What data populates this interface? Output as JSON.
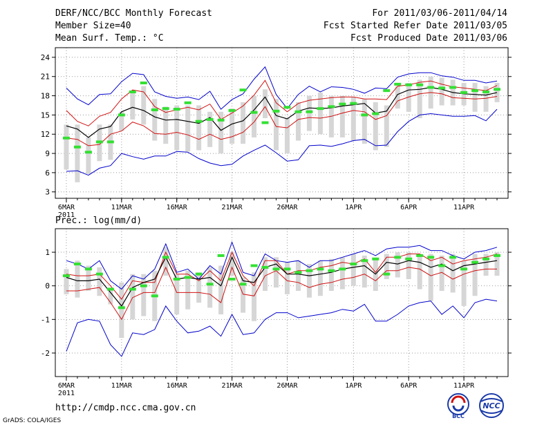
{
  "header": {
    "title": "DERF/NCC/BCC Monthly Forecast",
    "member_size": "Member Size=40",
    "variable": "Mean Surf. Temp.: °C",
    "period": "For 2011/03/06-2011/04/14",
    "refer_date": "Fcst Started Refer Date 2011/03/05",
    "produced_date": "Fcst Produced Date 2011/03/06"
  },
  "footer": {
    "url": "http://cmdp.ncc.cma.gov.cn",
    "credit": "GrADS: COLA/IGES",
    "logo_bcc_text": "BCC",
    "logo_ncc_text": "NCC"
  },
  "colors": {
    "mean": "#000000",
    "spread": "#d01010",
    "extremes": "#0000cc",
    "box": "#d6d6d6",
    "median": "#33e033"
  },
  "chart_data": [
    {
      "type": "line",
      "title": "Mean Surf. Temp.: °C",
      "xlabel": "",
      "ylabel": "°C",
      "ylim": [
        2,
        25.5
      ],
      "yticks": [
        3,
        6,
        9,
        12,
        15,
        18,
        21,
        24
      ],
      "xtick_labels": [
        "6MAR",
        "11MAR",
        "16MAR",
        "21MAR",
        "26MAR",
        "1APR",
        "6APR",
        "11APR"
      ],
      "xtick_days": [
        1,
        6,
        11,
        16,
        21,
        27,
        32,
        37
      ],
      "year_label": "2011",
      "grid": true,
      "days": [
        1,
        2,
        3,
        4,
        5,
        6,
        7,
        8,
        9,
        10,
        11,
        12,
        13,
        14,
        15,
        16,
        17,
        18,
        19,
        20,
        21,
        22,
        23,
        24,
        25,
        26,
        27,
        28,
        29,
        30,
        31,
        32,
        33,
        34,
        35,
        36,
        37,
        38,
        39,
        40
      ],
      "series": [
        {
          "name": "max",
          "values": [
            19.2,
            17.5,
            16.6,
            18.2,
            18.3,
            20.2,
            21.5,
            21.3,
            18.6,
            17.9,
            17.6,
            17.8,
            17.4,
            18.7,
            15.9,
            17.4,
            18.3,
            20.6,
            22.5,
            18.2,
            16.0,
            18.2,
            19.5,
            18.6,
            19.4,
            19.3,
            19.0,
            18.4,
            19.2,
            19.1,
            20.9,
            21.4,
            21.6,
            21.6,
            21.1,
            20.9,
            20.4,
            20.4,
            20.0,
            20.3
          ]
        },
        {
          "name": "upper",
          "values": [
            15.7,
            14.0,
            13.3,
            14.8,
            15.4,
            17.5,
            18.9,
            18.6,
            16.3,
            15.4,
            15.8,
            16.2,
            15.8,
            16.7,
            14.3,
            15.3,
            16.4,
            18.1,
            20.4,
            16.9,
            15.5,
            16.8,
            17.3,
            17.5,
            17.7,
            17.8,
            17.8,
            17.5,
            17.5,
            17.4,
            19.5,
            19.7,
            20.1,
            20.3,
            19.8,
            19.4,
            19.2,
            19.0,
            18.8,
            19.6
          ]
        },
        {
          "name": "mean",
          "values": [
            13.3,
            12.8,
            11.5,
            12.8,
            13.2,
            15.5,
            16.2,
            15.7,
            14.7,
            14.2,
            14.3,
            14.0,
            13.7,
            14.6,
            12.6,
            13.6,
            14.1,
            15.8,
            17.8,
            14.9,
            14.4,
            15.6,
            16.1,
            16.0,
            16.1,
            16.4,
            16.6,
            16.8,
            15.3,
            15.6,
            18.2,
            18.9,
            19.0,
            19.3,
            19.0,
            18.5,
            18.3,
            18.2,
            18.1,
            18.5
          ]
        },
        {
          "name": "lower",
          "values": [
            11.4,
            11.2,
            10.2,
            10.4,
            12.0,
            12.5,
            13.9,
            13.3,
            12.1,
            12.0,
            12.3,
            11.9,
            11.2,
            12.0,
            11.2,
            11.6,
            12.3,
            13.9,
            16.3,
            13.2,
            13.0,
            14.3,
            14.6,
            14.5,
            14.8,
            15.3,
            15.7,
            15.5,
            14.3,
            14.9,
            17.2,
            17.8,
            18.3,
            18.5,
            18.3,
            17.7,
            17.6,
            17.5,
            17.6,
            17.9
          ]
        },
        {
          "name": "min",
          "values": [
            6.2,
            6.3,
            5.6,
            6.7,
            7.1,
            9.0,
            8.5,
            8.1,
            8.6,
            8.6,
            9.3,
            9.2,
            8.2,
            7.5,
            7.1,
            7.3,
            8.6,
            9.5,
            10.3,
            9.1,
            7.8,
            8.0,
            10.2,
            10.3,
            10.1,
            10.5,
            11.0,
            11.2,
            10.2,
            10.3,
            12.4,
            14.0,
            15.0,
            15.2,
            15.0,
            14.8,
            14.8,
            14.9,
            14.1,
            15.9
          ]
        },
        {
          "name": "box_top",
          "values": [
            13.5,
            13.5,
            11.5,
            13.5,
            13.5,
            15.5,
            18.8,
            19.5,
            17.5,
            16.3,
            16.5,
            16.5,
            16.5,
            15.5,
            15.5,
            16.0,
            17.0,
            18.0,
            19.0,
            17.5,
            14.5,
            17.0,
            18.0,
            18.5,
            18.0,
            18.0,
            17.8,
            17.5,
            17.0,
            16.5,
            19.5,
            20.0,
            20.5,
            21.0,
            20.8,
            20.5,
            20.0,
            20.0,
            19.5,
            20.0
          ]
        },
        {
          "name": "box_bottom",
          "values": [
            6.5,
            4.5,
            5.8,
            7.8,
            8.0,
            12.5,
            14.3,
            13.5,
            11.0,
            10.5,
            9.5,
            9.3,
            9.5,
            10.0,
            9.0,
            10.5,
            10.5,
            11.5,
            14.5,
            9.5,
            9.0,
            11.0,
            12.5,
            12.0,
            11.5,
            11.5,
            11.0,
            10.5,
            9.5,
            10.0,
            16.0,
            15.5,
            14.5,
            16.0,
            16.5,
            16.5,
            16.5,
            15.5,
            15.5,
            17.0
          ]
        },
        {
          "name": "median",
          "values": [
            11.4,
            10.0,
            9.2,
            10.8,
            10.8,
            15.0,
            18.6,
            20.0,
            15.8,
            16.0,
            15.9,
            16.9,
            14.0,
            14.3,
            14.2,
            15.7,
            18.9,
            15.4,
            13.8,
            15.6,
            16.2,
            15.5,
            15.5,
            16.0,
            16.3,
            16.7,
            16.8,
            15.0,
            15.2,
            18.8,
            19.8,
            19.7,
            19.7,
            19.3,
            19.2,
            19.3,
            18.5,
            18.8,
            18.6,
            19.0
          ]
        }
      ]
    },
    {
      "type": "line",
      "title": "Prec.: log(mm/d)",
      "xlabel": "",
      "ylabel": "log(mm/d)",
      "ylim": [
        -2.7,
        1.7
      ],
      "yticks": [
        -2,
        -1,
        0,
        1
      ],
      "xtick_labels": [
        "6MAR",
        "11MAR",
        "16MAR",
        "21MAR",
        "26MAR",
        "1APR",
        "6APR",
        "11APR"
      ],
      "xtick_days": [
        1,
        6,
        11,
        16,
        21,
        27,
        32,
        37
      ],
      "year_label": "2011",
      "grid": true,
      "days": [
        1,
        2,
        3,
        4,
        5,
        6,
        7,
        8,
        9,
        10,
        11,
        12,
        13,
        14,
        15,
        16,
        17,
        18,
        19,
        20,
        21,
        22,
        23,
        24,
        25,
        26,
        27,
        28,
        29,
        30,
        31,
        32,
        33,
        34,
        35,
        36,
        37,
        38,
        39,
        40
      ],
      "series": [
        {
          "name": "max",
          "values": [
            0.75,
            0.65,
            0.5,
            0.75,
            0.15,
            -0.1,
            0.3,
            0.2,
            0.5,
            1.25,
            0.4,
            0.5,
            0.2,
            0.6,
            0.35,
            1.3,
            0.4,
            0.3,
            0.95,
            0.75,
            0.7,
            0.75,
            0.55,
            0.75,
            0.75,
            0.85,
            0.95,
            1.05,
            0.9,
            1.1,
            1.15,
            1.15,
            1.2,
            1.05,
            1.05,
            0.9,
            0.8,
            1.0,
            1.05,
            1.15
          ]
        },
        {
          "name": "upper",
          "values": [
            0.35,
            0.3,
            0.3,
            0.35,
            0.0,
            -0.4,
            0.15,
            0.1,
            0.1,
            1.0,
            0.35,
            0.35,
            0.15,
            0.45,
            0.15,
            1.0,
            0.3,
            0.0,
            0.75,
            0.75,
            0.35,
            0.45,
            0.45,
            0.55,
            0.6,
            0.7,
            0.65,
            0.8,
            0.4,
            0.85,
            0.85,
            0.95,
            0.95,
            0.75,
            0.85,
            0.65,
            0.75,
            0.8,
            0.85,
            0.95
          ]
        },
        {
          "name": "mean",
          "values": [
            0.25,
            0.15,
            0.15,
            0.2,
            -0.2,
            -0.6,
            -0.05,
            0.1,
            0.2,
            0.85,
            0.2,
            0.25,
            0.2,
            0.25,
            0.0,
            0.85,
            0.15,
            0.1,
            0.55,
            0.65,
            0.35,
            0.35,
            0.3,
            0.35,
            0.4,
            0.5,
            0.55,
            0.6,
            0.35,
            0.7,
            0.65,
            0.75,
            0.7,
            0.55,
            0.65,
            0.45,
            0.6,
            0.65,
            0.7,
            0.75
          ]
        },
        {
          "name": "lower",
          "values": [
            -0.15,
            -0.15,
            -0.1,
            -0.05,
            -0.5,
            -1.0,
            -0.35,
            -0.2,
            -0.2,
            0.55,
            -0.2,
            -0.2,
            -0.2,
            -0.25,
            -0.5,
            0.55,
            -0.25,
            -0.3,
            0.3,
            0.45,
            0.15,
            0.1,
            -0.05,
            0.05,
            0.1,
            0.2,
            0.25,
            0.35,
            0.15,
            0.45,
            0.45,
            0.55,
            0.5,
            0.3,
            0.4,
            0.2,
            0.35,
            0.45,
            0.5,
            0.5
          ]
        },
        {
          "name": "min",
          "values": [
            -1.95,
            -1.1,
            -1.0,
            -1.05,
            -1.75,
            -2.1,
            -1.4,
            -1.45,
            -1.3,
            -0.6,
            -1.05,
            -1.4,
            -1.35,
            -1.2,
            -1.5,
            -0.85,
            -1.45,
            -1.4,
            -1.0,
            -0.8,
            -0.8,
            -0.95,
            -0.9,
            -0.85,
            -0.8,
            -0.7,
            -0.75,
            -0.55,
            -1.05,
            -1.05,
            -0.85,
            -0.6,
            -0.5,
            -0.45,
            -0.85,
            -0.6,
            -0.95,
            -0.5,
            -0.4,
            -0.45
          ]
        },
        {
          "name": "box_top",
          "values": [
            0.5,
            0.75,
            0.6,
            0.55,
            -0.05,
            0.1,
            0.35,
            0.35,
            0.45,
            1.15,
            0.35,
            0.45,
            0.4,
            0.55,
            0.6,
            1.0,
            0.25,
            0.4,
            0.85,
            0.85,
            0.7,
            0.75,
            0.65,
            0.75,
            0.8,
            0.85,
            0.95,
            0.9,
            0.8,
            0.95,
            1.0,
            1.0,
            0.95,
            0.95,
            0.9,
            0.95,
            0.75,
            0.95,
            0.95,
            1.0
          ]
        },
        {
          "name": "box_bottom",
          "values": [
            -0.25,
            -0.35,
            -0.15,
            -0.3,
            -0.55,
            -1.55,
            -1.0,
            -0.9,
            -1.05,
            0.3,
            -0.85,
            -0.7,
            -0.5,
            -0.65,
            -0.85,
            0.3,
            -0.8,
            -1.05,
            -0.15,
            -0.05,
            -0.25,
            -0.15,
            -0.35,
            -0.3,
            -0.15,
            -0.1,
            0.0,
            -0.05,
            -0.15,
            0.2,
            0.25,
            0.2,
            -0.1,
            -0.45,
            -0.15,
            -0.2,
            -0.6,
            -0.3,
            0.3,
            0.3
          ]
        },
        {
          "name": "median",
          "values": [
            0.3,
            0.65,
            0.5,
            0.35,
            -0.1,
            -0.65,
            -0.1,
            0.0,
            -0.3,
            0.85,
            0.2,
            0.25,
            0.35,
            0.05,
            0.9,
            0.2,
            0.05,
            0.6,
            0.55,
            0.5,
            0.5,
            0.4,
            0.45,
            0.5,
            0.45,
            0.5,
            0.65,
            0.75,
            0.8,
            0.35,
            0.85,
            0.8,
            0.9,
            0.85,
            0.6,
            0.85,
            0.5,
            0.7,
            0.8,
            0.9
          ]
        }
      ]
    }
  ]
}
